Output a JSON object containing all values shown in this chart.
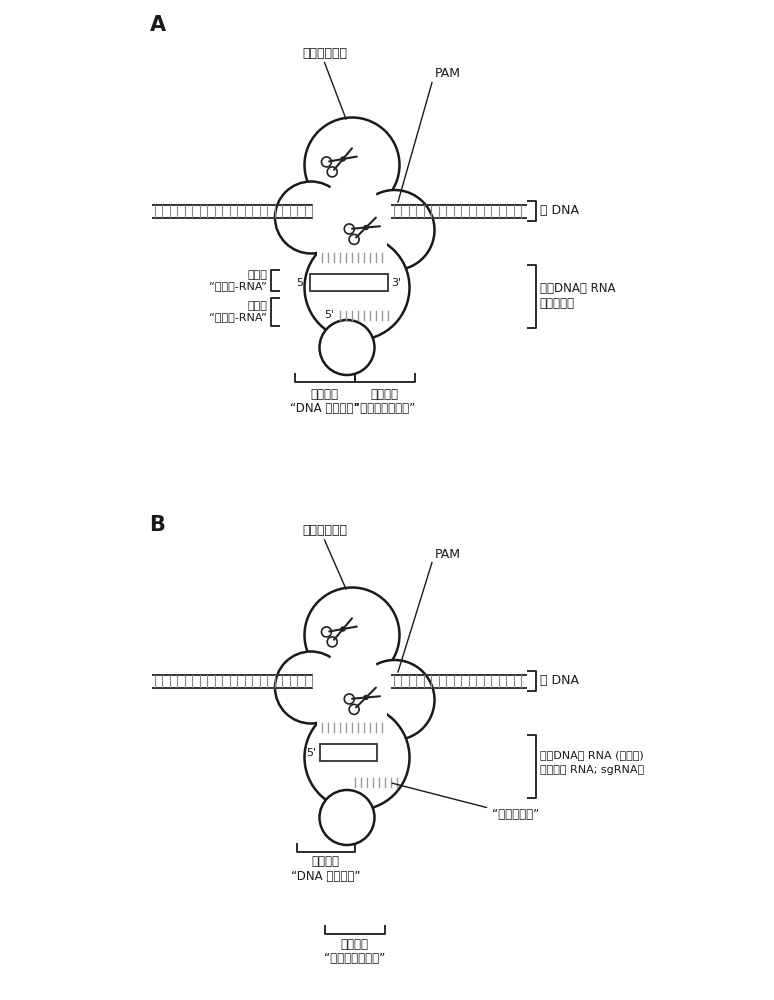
{
  "bg_color": "#ffffff",
  "line_color": "#1a1a1a",
  "panel_A_label": "A",
  "panel_B_label": "B",
  "label_dingdian": "定点修饰多肽",
  "label_PAM": "PAM",
  "label_baDNA": "靶 DNA",
  "label_fenziyiRNA": "分子一\n“靶向物-RNA”",
  "label_fenziErRNA": "分子二\n“激活物-RNA”",
  "label_baoDNARNA_A": "靶向DNA的 RNA\n（双分子）",
  "label_diyi_A_1": "第一区段",
  "label_diyi_A_2": "“DNA 靶向区段”",
  "label_dier_A_1": "第二区段",
  "label_dier_A_2": "“蛋白质结合区段”",
  "label_dingdian_B": "定点修饰多肽",
  "label_PAM_B": "PAM",
  "label_baDNA_B": "靶 DNA",
  "label_baoDNARNA_B_1": "靶向DNA的 RNA (单分子)",
  "label_baoDNARNA_B_2": "（单引导 RNA; sgRNA）",
  "label_jietou": "“接头核苷酸”",
  "label_diyi_B_1": "第一区段",
  "label_diyi_B_2": "“DNA 靶向区段”",
  "label_dier_B_1": "第二区段",
  "label_dier_B_2": "“蛋白质结合区段”"
}
